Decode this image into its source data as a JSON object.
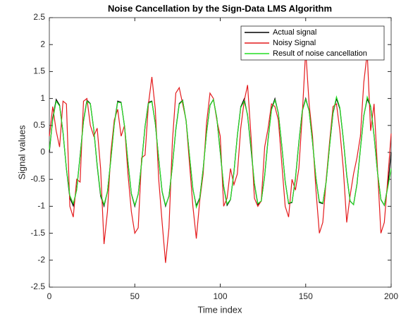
{
  "chart_data": {
    "type": "line",
    "title": "Noise Cancellation by the Sign-Data LMS Algorithm",
    "xlabel": "Time index",
    "ylabel": "Signal values",
    "x": [
      0,
      2,
      4,
      6,
      8,
      10,
      12,
      14,
      16,
      18,
      20,
      22,
      24,
      26,
      28,
      30,
      32,
      34,
      36,
      38,
      40,
      42,
      44,
      46,
      48,
      50,
      52,
      54,
      56,
      58,
      60,
      62,
      64,
      66,
      68,
      70,
      72,
      74,
      76,
      78,
      80,
      82,
      84,
      86,
      88,
      90,
      92,
      94,
      96,
      98,
      100,
      102,
      104,
      106,
      108,
      110,
      112,
      114,
      116,
      118,
      120,
      122,
      124,
      126,
      128,
      130,
      132,
      134,
      136,
      138,
      140,
      142,
      144,
      146,
      148,
      150,
      152,
      154,
      156,
      158,
      160,
      162,
      164,
      166,
      168,
      170,
      172,
      174,
      176,
      178,
      180,
      182,
      184,
      186,
      188,
      190,
      192,
      194,
      196,
      198,
      200
    ],
    "series": [
      {
        "name": "Actual signal",
        "color": "#000000",
        "values": [
          0,
          0.637,
          0.982,
          0.876,
          0.368,
          -0.309,
          -0.844,
          -0.992,
          -0.685,
          -0.063,
          0.588,
          0.969,
          0.905,
          0.426,
          -0.249,
          -0.809,
          -0.998,
          -0.729,
          -0.125,
          0.536,
          0.951,
          0.93,
          0.482,
          -0.187,
          -0.771,
          -1,
          -0.771,
          -0.187,
          0.482,
          0.93,
          0.951,
          0.536,
          -0.125,
          -0.729,
          -0.998,
          -0.809,
          -0.249,
          0.426,
          0.905,
          0.969,
          0.588,
          -0.063,
          -0.685,
          -0.992,
          -0.844,
          -0.309,
          0.368,
          0.876,
          0.982,
          0.637,
          0,
          -0.637,
          -0.982,
          -0.876,
          -0.368,
          0.309,
          0.844,
          0.992,
          0.685,
          0.063,
          -0.588,
          -0.969,
          -0.905,
          -0.426,
          0.249,
          0.809,
          0.998,
          0.729,
          0.125,
          -0.536,
          -0.951,
          -0.93,
          -0.482,
          0.187,
          0.771,
          1,
          0.771,
          0.187,
          -0.482,
          -0.93,
          -0.951,
          -0.536,
          0.125,
          0.729,
          0.998,
          0.809,
          0.249,
          -0.426,
          -0.905,
          -0.969,
          -0.588,
          0.063,
          0.685,
          0.992,
          0.844,
          0.309,
          -0.368,
          -0.876,
          -0.982,
          -0.637,
          0
        ]
      },
      {
        "name": "Noisy Signal",
        "color": "#e41a1c",
        "values": [
          0.3,
          0.85,
          0.4,
          0.1,
          0.95,
          0.9,
          -1.0,
          -1.2,
          -0.5,
          -0.55,
          0.95,
          1.0,
          0.5,
          0.3,
          0.45,
          -0.3,
          -1.7,
          -1.1,
          0.0,
          0.6,
          0.8,
          0.3,
          0.5,
          -0.4,
          -1.1,
          -1.5,
          -1.4,
          -0.1,
          -0.05,
          0.9,
          1.4,
          0.8,
          -0.5,
          -1.3,
          -2.05,
          -1.4,
          0.2,
          1.1,
          1.2,
          0.9,
          0.6,
          -0.2,
          -1.0,
          -1.6,
          -0.9,
          -0.4,
          0.55,
          1.1,
          1.0,
          0.6,
          0.3,
          -1.0,
          -0.85,
          -0.3,
          -0.6,
          -0.4,
          0.45,
          0.95,
          1.25,
          0.3,
          -0.85,
          -1.0,
          -0.9,
          0.1,
          0.45,
          0.9,
          0.85,
          0.6,
          -0.2,
          -1.0,
          -1.2,
          -0.5,
          -0.7,
          -0.3,
          0.7,
          1.9,
          0.9,
          0.3,
          -0.7,
          -1.5,
          -1.3,
          -0.5,
          0.2,
          0.85,
          0.9,
          0.4,
          -0.3,
          -1.3,
          -0.8,
          -0.4,
          -0.1,
          0.3,
          1.3,
          1.85,
          0.4,
          0.9,
          -0.3,
          -1.5,
          -1.3,
          -0.5,
          0.35
        ]
      },
      {
        "name": "Result of noise cancellation",
        "color": "#22dd22",
        "values": [
          0.05,
          0.6,
          0.95,
          0.86,
          0.38,
          -0.3,
          -0.8,
          -0.95,
          -0.7,
          -0.08,
          0.57,
          0.95,
          0.9,
          0.43,
          -0.23,
          -0.78,
          -0.97,
          -0.73,
          -0.14,
          0.52,
          0.93,
          0.92,
          0.49,
          -0.17,
          -0.76,
          -0.98,
          -0.78,
          -0.2,
          0.47,
          0.91,
          0.94,
          0.54,
          -0.11,
          -0.72,
          -0.98,
          -0.82,
          -0.26,
          0.41,
          0.89,
          0.96,
          0.59,
          -0.05,
          -0.67,
          -1.02,
          -0.86,
          -0.32,
          0.36,
          0.87,
          0.98,
          0.64,
          0.02,
          -0.62,
          -0.96,
          -0.87,
          -0.38,
          0.3,
          0.83,
          0.95,
          0.7,
          0.1,
          -0.57,
          -0.95,
          -0.9,
          -0.44,
          0.23,
          0.79,
          0.97,
          0.73,
          0.14,
          -0.55,
          -0.94,
          -0.92,
          -0.5,
          0.17,
          0.76,
          0.98,
          0.77,
          0.2,
          -0.47,
          -0.91,
          -0.94,
          -0.55,
          0.12,
          0.74,
          1.03,
          0.83,
          0.26,
          -0.41,
          -0.9,
          -0.97,
          -0.6,
          0.05,
          0.67,
          1.03,
          0.86,
          0.32,
          -0.36,
          -0.87,
          -0.98,
          -0.66,
          -0.3
        ]
      }
    ],
    "xlim": [
      0,
      200
    ],
    "xticks": [
      0,
      50,
      100,
      150,
      200
    ],
    "ylim": [
      -2.5,
      2.5
    ],
    "yticks": [
      -2.5,
      -2,
      -1.5,
      -1,
      -0.5,
      0,
      0.5,
      1,
      1.5,
      2,
      2.5
    ],
    "grid": false,
    "legend": "northeast"
  }
}
